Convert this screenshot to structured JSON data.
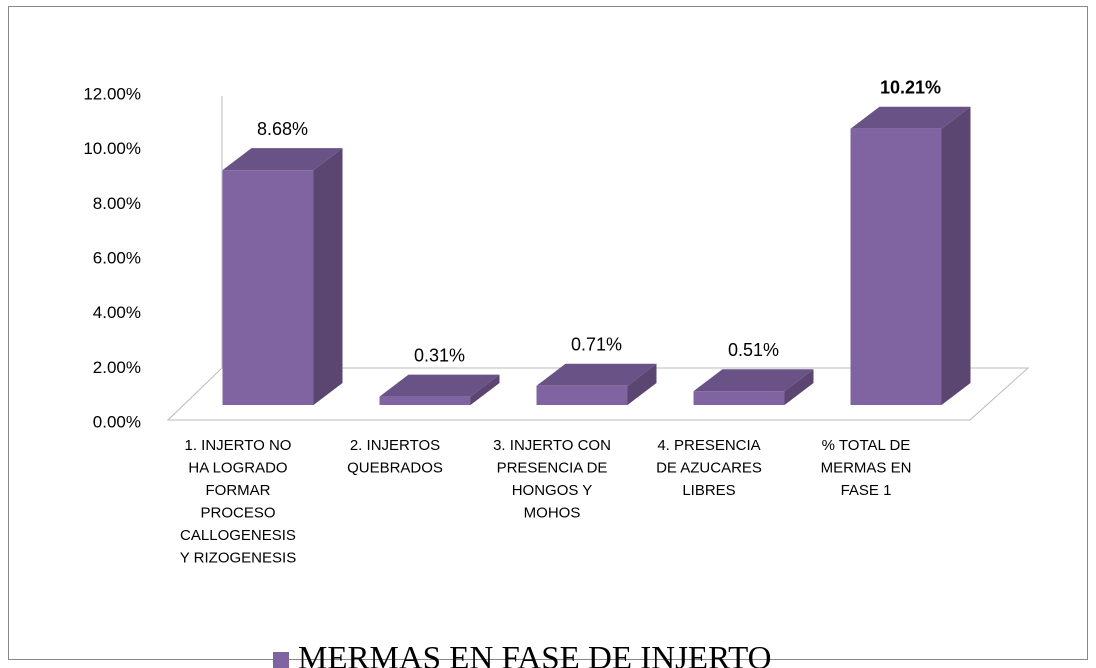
{
  "chart_data": {
    "type": "bar3d",
    "categories": [
      [
        "1. INJERTO NO",
        "HA LOGRADO",
        "FORMAR",
        "PROCESO",
        "CALLOGENESIS",
        "Y RIZOGENESIS"
      ],
      [
        "2. INJERTOS",
        "QUEBRADOS"
      ],
      [
        "3. INJERTO CON",
        "PRESENCIA DE",
        "HONGOS Y",
        "MOHOS"
      ],
      [
        "4. PRESENCIA",
        "DE AZUCARES",
        "LIBRES"
      ],
      [
        "% TOTAL DE",
        "MERMAS EN",
        "FASE 1"
      ]
    ],
    "series": [
      {
        "name": "MERMAS EN FASE DE INJERTO",
        "color": "#8064a2",
        "values": [
          8.68,
          0.31,
          0.71,
          0.51,
          10.21
        ],
        "value_labels": [
          "8.68%",
          "0.31%",
          "0.71%",
          "0.51%",
          "10.21%"
        ]
      }
    ],
    "ylim": [
      0,
      12
    ],
    "yticks": [
      {
        "value": 0,
        "label": "0.00%"
      },
      {
        "value": 2,
        "label": "2.00%"
      },
      {
        "value": 4,
        "label": "4.00%"
      },
      {
        "value": 6,
        "label": "6.00%"
      },
      {
        "value": 8,
        "label": "8.00%"
      },
      {
        "value": 10,
        "label": "10.00%"
      },
      {
        "value": 12,
        "label": "12.00%"
      }
    ],
    "legend": "bottom"
  }
}
